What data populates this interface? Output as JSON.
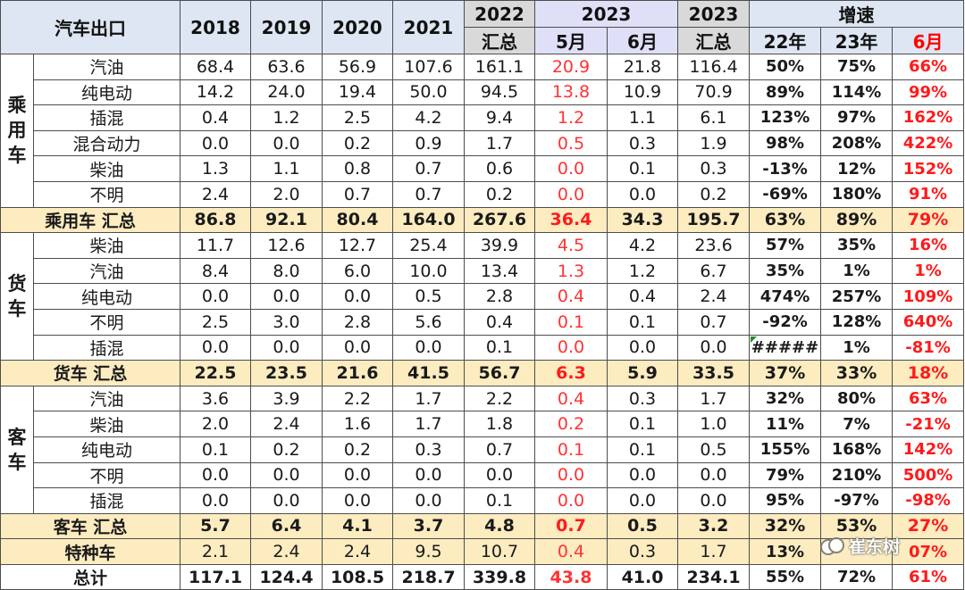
{
  "header": {
    "corner": "汽车出口",
    "years": [
      "2018",
      "2019",
      "2020",
      "2021"
    ],
    "y2022": "2022",
    "y2022_sub": "汇总",
    "y2023": "2023",
    "may": "5月",
    "jun": "6月",
    "y2023_total": "2023",
    "y2023_total_sub": "汇总",
    "growth": "增速",
    "g22": "22年",
    "g23": "23年",
    "g6": "6月"
  },
  "passenger": {
    "category": "乘用车",
    "rows": [
      {
        "label": "汽油",
        "values": [
          "68.4",
          "63.6",
          "56.9",
          "107.6",
          "161.1",
          "20.9",
          "21.8",
          "116.4",
          "50%",
          "75%",
          "66%"
        ]
      },
      {
        "label": "纯电动",
        "values": [
          "14.2",
          "24.0",
          "19.4",
          "50.0",
          "94.5",
          "13.8",
          "10.9",
          "70.9",
          "89%",
          "114%",
          "99%"
        ]
      },
      {
        "label": "插混",
        "values": [
          "0.4",
          "1.2",
          "2.5",
          "4.2",
          "9.4",
          "1.2",
          "1.1",
          "6.1",
          "123%",
          "97%",
          "162%"
        ]
      },
      {
        "label": "混合动力",
        "values": [
          "0.0",
          "0.0",
          "0.2",
          "0.9",
          "1.7",
          "0.5",
          "0.3",
          "1.9",
          "98%",
          "208%",
          "422%"
        ]
      },
      {
        "label": "柴油",
        "values": [
          "1.3",
          "1.1",
          "0.8",
          "0.7",
          "0.6",
          "0.0",
          "0.1",
          "0.3",
          "-13%",
          "12%",
          "152%"
        ]
      },
      {
        "label": "不明",
        "values": [
          "2.4",
          "2.0",
          "0.7",
          "0.7",
          "0.2",
          "0.0",
          "0.0",
          "0.2",
          "-69%",
          "180%",
          "91%"
        ]
      }
    ],
    "summary": {
      "label": "乘用车 汇总",
      "values": [
        "86.8",
        "92.1",
        "80.4",
        "164.0",
        "267.6",
        "36.4",
        "34.3",
        "195.7",
        "63%",
        "89%",
        "79%"
      ]
    }
  },
  "truck": {
    "category": "货车",
    "rows": [
      {
        "label": "柴油",
        "values": [
          "11.7",
          "12.6",
          "12.7",
          "25.4",
          "39.9",
          "4.5",
          "4.2",
          "23.6",
          "57%",
          "35%",
          "16%"
        ]
      },
      {
        "label": "汽油",
        "values": [
          "8.4",
          "8.0",
          "6.0",
          "10.0",
          "13.4",
          "1.3",
          "1.2",
          "6.7",
          "35%",
          "1%",
          "1%"
        ]
      },
      {
        "label": "纯电动",
        "values": [
          "0.0",
          "0.0",
          "0.0",
          "0.5",
          "2.8",
          "0.4",
          "0.4",
          "2.4",
          "474%",
          "257%",
          "109%"
        ]
      },
      {
        "label": "不明",
        "values": [
          "2.5",
          "3.0",
          "2.8",
          "5.6",
          "0.4",
          "0.1",
          "0.1",
          "0.7",
          "-92%",
          "128%",
          "640%"
        ]
      },
      {
        "label": "插混",
        "values": [
          "0.0",
          "0.0",
          "0.0",
          "0.0",
          "0.1",
          "0.0",
          "0.0",
          "0.0",
          "#####",
          "1%",
          "-81%"
        ]
      }
    ],
    "summary": {
      "label": "货车 汇总",
      "values": [
        "22.5",
        "23.5",
        "21.6",
        "41.5",
        "56.7",
        "6.3",
        "5.9",
        "33.5",
        "37%",
        "33%",
        "18%"
      ]
    }
  },
  "bus": {
    "category": "客车",
    "rows": [
      {
        "label": "汽油",
        "values": [
          "3.6",
          "3.9",
          "2.2",
          "1.7",
          "2.2",
          "0.4",
          "0.3",
          "1.7",
          "32%",
          "80%",
          "63%"
        ]
      },
      {
        "label": "柴油",
        "values": [
          "2.0",
          "2.4",
          "1.6",
          "1.7",
          "1.8",
          "0.2",
          "0.1",
          "1.0",
          "11%",
          "7%",
          "-21%"
        ]
      },
      {
        "label": "纯电动",
        "values": [
          "0.1",
          "0.2",
          "0.2",
          "0.3",
          "0.7",
          "0.1",
          "0.1",
          "0.5",
          "155%",
          "168%",
          "142%"
        ]
      },
      {
        "label": "不明",
        "values": [
          "0.0",
          "0.0",
          "0.0",
          "0.0",
          "0.0",
          "0.0",
          "0.0",
          "0.0",
          "79%",
          "210%",
          "500%"
        ]
      },
      {
        "label": "插混",
        "values": [
          "0.0",
          "0.0",
          "0.0",
          "0.0",
          "0.1",
          "0.0",
          "0.0",
          "0.0",
          "95%",
          "-97%",
          "-98%"
        ]
      }
    ],
    "summary": {
      "label": "客车 汇总",
      "values": [
        "5.7",
        "6.4",
        "4.1",
        "3.7",
        "4.8",
        "0.7",
        "0.5",
        "3.2",
        "32%",
        "53%",
        "27%"
      ]
    }
  },
  "special": {
    "label": "特种车",
    "values": [
      "2.1",
      "2.4",
      "2.4",
      "9.5",
      "10.7",
      "0.4",
      "0.3",
      "1.7",
      "13%",
      "",
      "07%"
    ]
  },
  "total": {
    "label": "总计",
    "values": [
      "117.1",
      "124.4",
      "108.5",
      "218.7",
      "339.8",
      "43.8",
      "41.0",
      "234.1",
      "55%",
      "72%",
      "61%"
    ]
  },
  "watermark": "崔东树"
}
